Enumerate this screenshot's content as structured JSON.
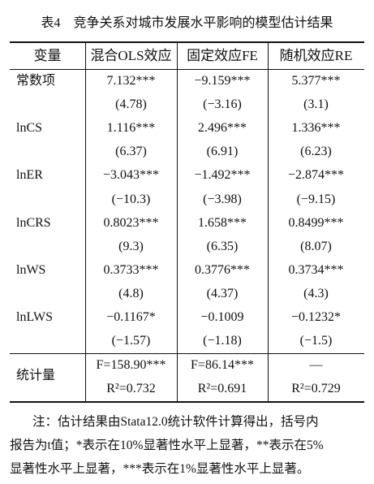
{
  "title": "表4　竞争关系对城市发展水平影响的模型估计结果",
  "table": {
    "header": [
      "变量",
      "混合OLS效应",
      "固定效应FE",
      "随机效应RE"
    ],
    "rows": [
      {
        "label": "常数项",
        "cells": [
          [
            "7.132***",
            "(4.78)"
          ],
          [
            "−9.159***",
            "(−3.16)"
          ],
          [
            "5.377***",
            "(3.1)"
          ]
        ]
      },
      {
        "label": "lnCS",
        "cells": [
          [
            "1.116***",
            "(6.37)"
          ],
          [
            "2.496***",
            "(6.91)"
          ],
          [
            "1.336***",
            "(6.23)"
          ]
        ]
      },
      {
        "label": "lnER",
        "cells": [
          [
            "−3.043***",
            "(−10.3)"
          ],
          [
            "−1.492***",
            "(−3.98)"
          ],
          [
            "−2.874***",
            "(−9.15)"
          ]
        ]
      },
      {
        "label": "lnCRS",
        "cells": [
          [
            "0.8023***",
            "(9.3)"
          ],
          [
            "1.658***",
            "(6.35)"
          ],
          [
            "0.8499***",
            "(8.07)"
          ]
        ]
      },
      {
        "label": "lnWS",
        "cells": [
          [
            "0.3733***",
            "(4.8)"
          ],
          [
            "0.3776***",
            "(4.37)"
          ],
          [
            "0.3734***",
            "(4.3)"
          ]
        ]
      },
      {
        "label": "lnLWS",
        "cells": [
          [
            "−0.1167*",
            "(−1.57)"
          ],
          [
            "−0.1009",
            "(−1.18)"
          ],
          [
            "−0.1232*",
            "(−1.5)"
          ]
        ]
      },
      {
        "label": "统计量",
        "cells": [
          [
            "F=158.90***",
            "R²=0.732"
          ],
          [
            "F=86.14***",
            "R²=0.691"
          ],
          [
            "—",
            "R²=0.729"
          ]
        ]
      }
    ]
  },
  "note": [
    "注：估计结果由Stata12.0统计软件计算得出，括号内",
    "报告为t值；*表示在10%显著性水平上显著，**表示在5%",
    "显著性水平上显著，***表示在1%显著性水平上显著。"
  ]
}
